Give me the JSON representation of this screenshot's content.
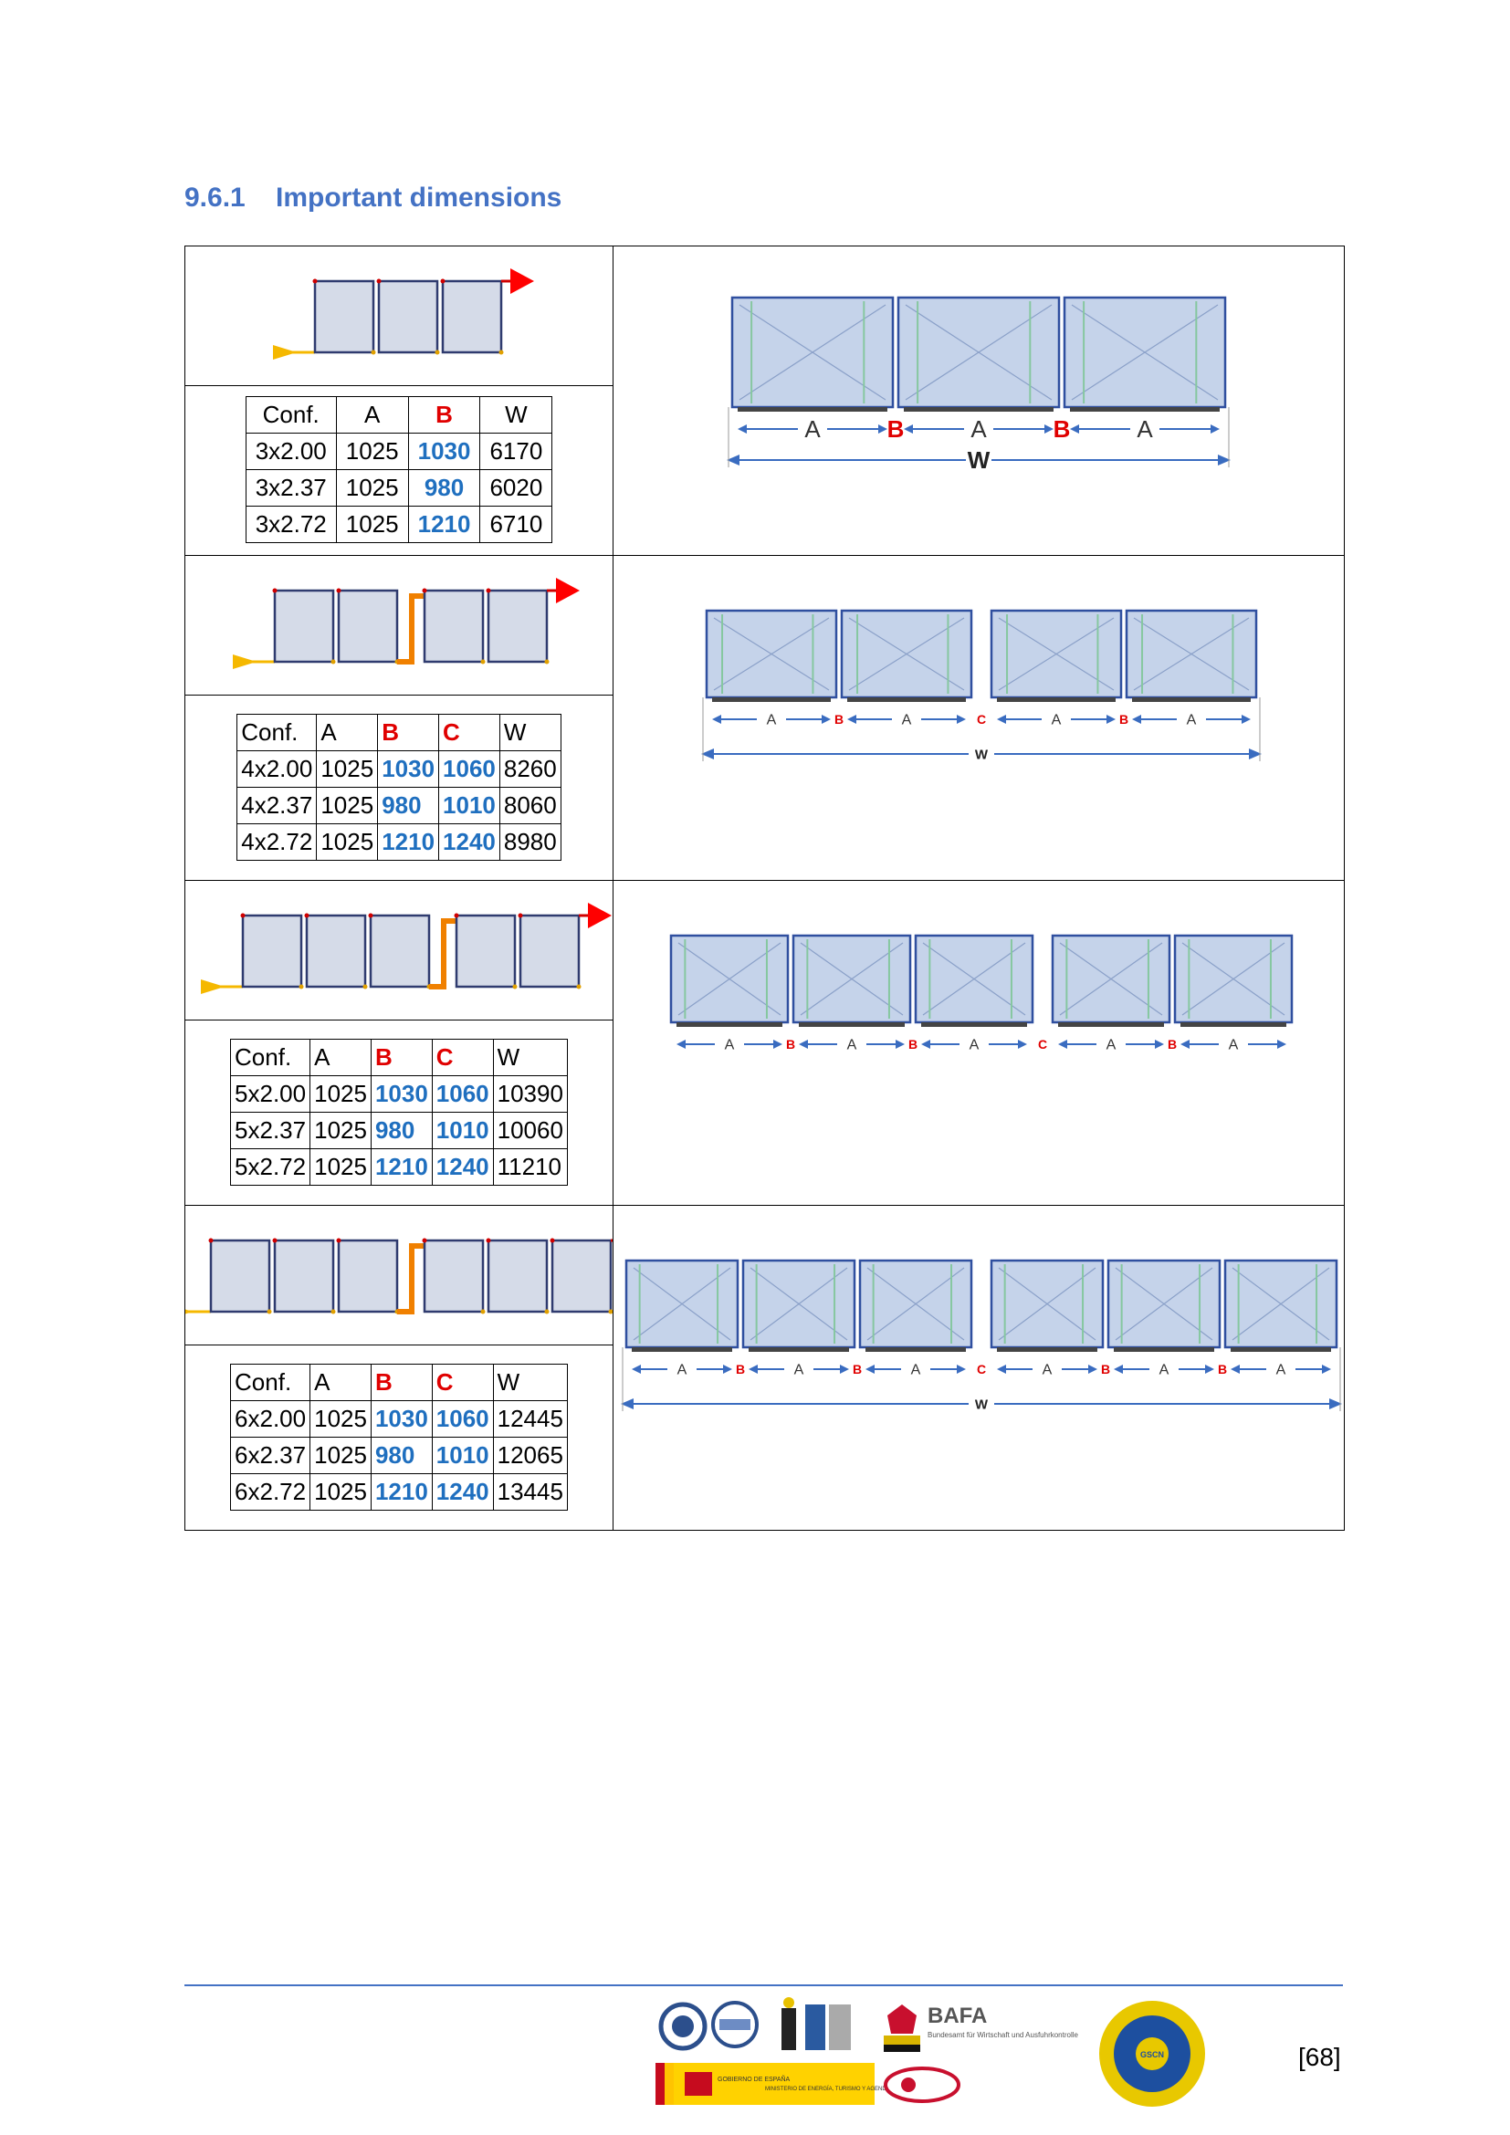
{
  "section": {
    "number": "9.6.1",
    "title": "Important dimensions"
  },
  "labels": {
    "A": "A",
    "B": "B",
    "C": "C",
    "W": "W"
  },
  "rows": [
    {
      "modules": 3,
      "headers": [
        "Conf.",
        "A",
        "B",
        "W"
      ],
      "data": [
        [
          "3x2.00",
          "1025",
          "1030",
          "6170"
        ],
        [
          "3x2.37",
          "1025",
          "980",
          "6020"
        ],
        [
          "3x2.72",
          "1025",
          "1210",
          "6710"
        ]
      ]
    },
    {
      "modules": 4,
      "headers": [
        "Conf.",
        "A",
        "B",
        "C",
        "W"
      ],
      "data": [
        [
          "4x2.00",
          "1025",
          "1030",
          "1060",
          "8260"
        ],
        [
          "4x2.37",
          "1025",
          "980",
          "1010",
          "8060"
        ],
        [
          "4x2.72",
          "1025",
          "1210",
          "1240",
          "8980"
        ]
      ]
    },
    {
      "modules": 5,
      "headers": [
        "Conf.",
        "A",
        "B",
        "C",
        "W"
      ],
      "data": [
        [
          "5x2.00",
          "1025",
          "1030",
          "1060",
          "10390"
        ],
        [
          "5x2.37",
          "1025",
          "980",
          "1010",
          "10060"
        ],
        [
          "5x2.72",
          "1025",
          "1210",
          "1240",
          "11210"
        ]
      ]
    },
    {
      "modules": 6,
      "headers": [
        "Conf.",
        "A",
        "B",
        "C",
        "W"
      ],
      "data": [
        [
          "6x2.00",
          "1025",
          "1030",
          "1060",
          "12445"
        ],
        [
          "6x2.37",
          "1025",
          "980",
          "1010",
          "12065"
        ],
        [
          "6x2.72",
          "1025",
          "1210",
          "1240",
          "13445"
        ]
      ]
    }
  ],
  "footer": {
    "page_number": "[68]",
    "logos": [
      "BAFA",
      "Bundesamt für Wirtschaft und Ausfuhrkontrolle",
      "GOBIERNO DE ESPAÑA",
      "MINISTERIO DE ENERGÍA, TURISMO Y AGENDA DIGITAL",
      "GSCN"
    ]
  },
  "colors": {
    "heading": "#4472c4",
    "red": "#e00000",
    "blue": "#1f6fbf",
    "module_fill": "#c5d3ea",
    "module_stroke": "#2f4f9f",
    "arrow_red": "#ff0000",
    "arrow_yellow": "#f5b800"
  }
}
